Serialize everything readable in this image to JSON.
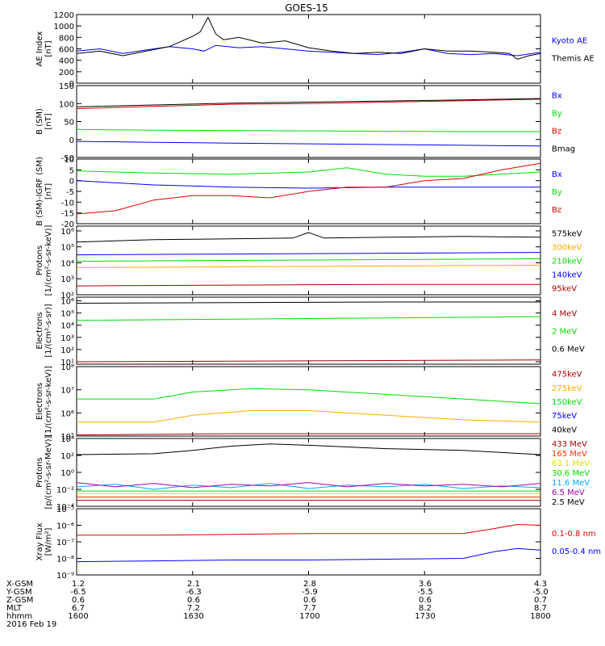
{
  "title": "GOES-15",
  "date_label": "2016 Feb 19",
  "orbit_rows": [
    {
      "label": "X-GSM",
      "values": [
        "1.2",
        "2.1",
        "2.8",
        "3.6",
        "4.3"
      ]
    },
    {
      "label": "Y-GSM",
      "values": [
        "-6.5",
        "-6.3",
        "-5.9",
        "-5.5",
        "-5.0"
      ]
    },
    {
      "label": "Z-GSM",
      "values": [
        "0.6",
        "0.6",
        "0.6",
        "0.6",
        "0.7"
      ]
    },
    {
      "label": "MLT",
      "values": [
        "6.7",
        "7.2",
        "7.7",
        "8.2",
        "8.7"
      ]
    },
    {
      "label": "hhmm",
      "values": [
        "1600",
        "1630",
        "1700",
        "1730",
        "1800"
      ]
    }
  ],
  "chart_data": [
    {
      "type": "line",
      "id": "ae",
      "ylabel_lines": [
        "AE Index",
        "[nT]"
      ],
      "ylim": [
        0,
        1200
      ],
      "log": false,
      "ticks": [
        {
          "v": 0,
          "t": "0"
        },
        {
          "v": 200,
          "t": "200"
        },
        {
          "v": 400,
          "t": "400"
        },
        {
          "v": 600,
          "t": "600"
        },
        {
          "v": 800,
          "t": "800"
        },
        {
          "v": 1000,
          "t": "1000"
        },
        {
          "v": 1200,
          "t": "1200"
        }
      ],
      "xlim": [
        0,
        120
      ],
      "series": [
        {
          "name": "Kyoto AE",
          "color": "#0000ff",
          "x": [
            0,
            6,
            12,
            18,
            24,
            30,
            33,
            36,
            42,
            48,
            54,
            60,
            66,
            72,
            78,
            84,
            90,
            96,
            102,
            108,
            114,
            120
          ],
          "y": [
            560,
            600,
            520,
            580,
            640,
            600,
            560,
            660,
            620,
            640,
            600,
            560,
            540,
            520,
            500,
            540,
            600,
            520,
            500,
            520,
            480,
            540
          ]
        },
        {
          "name": "Themis AE",
          "color": "#000000",
          "x": [
            0,
            6,
            12,
            18,
            24,
            26,
            28,
            30,
            32,
            34,
            36,
            38,
            42,
            48,
            54,
            60,
            66,
            72,
            78,
            84,
            90,
            96,
            102,
            108,
            112,
            114,
            117,
            120
          ],
          "y": [
            520,
            560,
            480,
            560,
            640,
            700,
            760,
            820,
            900,
            1150,
            860,
            760,
            800,
            700,
            740,
            620,
            560,
            520,
            540,
            520,
            600,
            560,
            560,
            540,
            520,
            420,
            480,
            520
          ]
        }
      ]
    },
    {
      "type": "line",
      "id": "bfield",
      "ylabel_lines": [
        "B (SM)",
        "[nT]"
      ],
      "ylim": [
        -50,
        150
      ],
      "log": false,
      "ticks": [
        {
          "v": -50,
          "t": "-50"
        },
        {
          "v": 0,
          "t": "0"
        },
        {
          "v": 50,
          "t": "50"
        },
        {
          "v": 100,
          "t": "100"
        },
        {
          "v": 150,
          "t": "150"
        }
      ],
      "xlim": [
        0,
        120
      ],
      "series": [
        {
          "name": "Bx",
          "color": "#0000ff",
          "x": [
            0,
            20,
            40,
            60,
            80,
            100,
            120
          ],
          "y": [
            -5,
            -8,
            -10,
            -12,
            -14,
            -16,
            -18
          ]
        },
        {
          "name": "By",
          "color": "#00dd00",
          "x": [
            0,
            20,
            40,
            60,
            80,
            100,
            120
          ],
          "y": [
            28,
            26,
            25,
            24,
            23,
            22,
            22
          ]
        },
        {
          "name": "Bz",
          "color": "#dd0000",
          "x": [
            0,
            20,
            40,
            60,
            80,
            100,
            120
          ],
          "y": [
            86,
            92,
            98,
            100,
            104,
            108,
            112
          ]
        },
        {
          "name": "Bmag",
          "color": "#000000",
          "x": [
            0,
            20,
            40,
            60,
            80,
            100,
            120
          ],
          "y": [
            91,
            96,
            101,
            104,
            107,
            110,
            114
          ]
        }
      ]
    },
    {
      "type": "line",
      "id": "bdiff",
      "ylabel_lines": [
        "B (SM)-IGRF (SM)",
        "[nT]"
      ],
      "ylim": [
        -20,
        10
      ],
      "log": false,
      "ticks": [
        {
          "v": -20,
          "t": "-20"
        },
        {
          "v": -15,
          "t": "-15"
        },
        {
          "v": -10,
          "t": "-10"
        },
        {
          "v": -5,
          "t": "-5"
        },
        {
          "v": 0,
          "t": "0"
        },
        {
          "v": 5,
          "t": "5"
        },
        {
          "v": 10,
          "t": "10"
        }
      ],
      "xlim": [
        0,
        120
      ],
      "series": [
        {
          "name": "Bx",
          "color": "#0000ff",
          "x": [
            0,
            20,
            40,
            60,
            80,
            100,
            120
          ],
          "y": [
            0,
            -2,
            -3,
            -3.5,
            -3,
            -3,
            -3
          ]
        },
        {
          "name": "By",
          "color": "#00dd00",
          "x": [
            0,
            20,
            40,
            60,
            70,
            80,
            90,
            100,
            120
          ],
          "y": [
            4.5,
            3.5,
            3,
            4,
            6,
            3,
            2,
            2,
            4
          ]
        },
        {
          "name": "Bz",
          "color": "#dd0000",
          "x": [
            0,
            10,
            20,
            30,
            40,
            50,
            60,
            70,
            80,
            90,
            100,
            110,
            120
          ],
          "y": [
            -15.5,
            -14,
            -9,
            -7,
            -7,
            -8,
            -5,
            -3,
            -3,
            0,
            1,
            5,
            8
          ]
        }
      ]
    },
    {
      "type": "line",
      "id": "protons_low",
      "ylabel_lines": [
        "Protons",
        "[1/(cm²-s-sr-keV)]"
      ],
      "ylim": [
        2,
        6.3
      ],
      "log": true,
      "ticks": [
        {
          "v": 2,
          "t": "10²"
        },
        {
          "v": 3,
          "t": "10³"
        },
        {
          "v": 4,
          "t": "10⁴"
        },
        {
          "v": 5,
          "t": "10⁵"
        },
        {
          "v": 6,
          "t": "10⁶"
        }
      ],
      "xlim": [
        0,
        120
      ],
      "series": [
        {
          "name": "575keV",
          "color": "#000000",
          "x": [
            0,
            20,
            40,
            56,
            60,
            64,
            80,
            100,
            120
          ],
          "y": [
            5.3,
            5.45,
            5.5,
            5.55,
            5.9,
            5.55,
            5.6,
            5.65,
            5.6
          ]
        },
        {
          "name": "300keV",
          "color": "#ffaa00",
          "x": [
            0,
            40,
            80,
            120
          ],
          "y": [
            3.7,
            3.75,
            3.8,
            3.85
          ]
        },
        {
          "name": "210keV",
          "color": "#00dd00",
          "x": [
            0,
            40,
            80,
            120
          ],
          "y": [
            4.1,
            4.15,
            4.2,
            4.25
          ]
        },
        {
          "name": "140keV",
          "color": "#0000ff",
          "x": [
            0,
            40,
            80,
            120
          ],
          "y": [
            4.5,
            4.55,
            4.6,
            4.65
          ]
        },
        {
          "name": "95keV",
          "color": "#aa0000",
          "x": [
            0,
            40,
            80,
            120
          ],
          "y": [
            2.55,
            2.6,
            2.65,
            2.65
          ]
        }
      ]
    },
    {
      "type": "line",
      "id": "electrons_high",
      "ylabel_lines": [
        "Electrons",
        "[1/(cm²-s-sr)]"
      ],
      "ylim": [
        0.8,
        6.3
      ],
      "log": true,
      "ticks": [
        {
          "v": 1,
          "t": "10¹"
        },
        {
          "v": 2,
          "t": "10²"
        },
        {
          "v": 3,
          "t": "10³"
        },
        {
          "v": 4,
          "t": "10⁴"
        },
        {
          "v": 5,
          "t": "10⁵"
        },
        {
          "v": 6,
          "t": "10⁶"
        }
      ],
      "xlim": [
        0,
        120
      ],
      "series": [
        {
          "name": "4 MeV",
          "color": "#aa0000",
          "x": [
            0,
            40,
            80,
            120
          ],
          "y": [
            1.0,
            1.05,
            1.1,
            1.15
          ]
        },
        {
          "name": "2 MeV",
          "color": "#00dd00",
          "x": [
            0,
            40,
            80,
            120
          ],
          "y": [
            4.4,
            4.5,
            4.6,
            4.7
          ]
        },
        {
          "name": "0.6 MeV",
          "color": "#000000",
          "x": [
            0,
            40,
            80,
            120
          ],
          "y": [
            5.8,
            5.85,
            5.9,
            5.9
          ]
        }
      ]
    },
    {
      "type": "line",
      "id": "electrons_low",
      "ylabel_lines": [
        "Electrons",
        "[1/(cm²-s-sr-keV)]"
      ],
      "ylim": [
        5,
        8
      ],
      "log": true,
      "ticks": [
        {
          "v": 5,
          "t": "10⁵"
        },
        {
          "v": 6,
          "t": "10⁶"
        },
        {
          "v": 7,
          "t": "10⁷"
        },
        {
          "v": 8,
          "t": "10⁸"
        }
      ],
      "xlim": [
        0,
        120
      ],
      "series": [
        {
          "name": "475keV",
          "color": "#aa0000",
          "x": [
            0,
            40,
            80,
            120
          ],
          "y": [
            5.05,
            5.1,
            5.1,
            5.1
          ]
        },
        {
          "name": "275keV",
          "color": "#ffaa00",
          "x": [
            0,
            20,
            30,
            45,
            60,
            80,
            100,
            120
          ],
          "y": [
            5.6,
            5.6,
            5.9,
            6.1,
            6.1,
            5.9,
            5.7,
            5.6
          ]
        },
        {
          "name": "150keV",
          "color": "#00dd00",
          "x": [
            0,
            20,
            30,
            45,
            60,
            80,
            100,
            120
          ],
          "y": [
            6.6,
            6.6,
            6.9,
            7.05,
            7.0,
            6.8,
            6.6,
            6.4
          ]
        },
        {
          "name": "75keV",
          "color": "#0000ff",
          "x": [
            0,
            120
          ],
          "y": [
            5.0,
            5.0
          ]
        },
        {
          "name": "40keV",
          "color": "#000000",
          "x": [
            0,
            120
          ],
          "y": [
            5.0,
            5.0
          ]
        }
      ]
    },
    {
      "type": "line",
      "id": "protons_high",
      "ylabel_lines": [
        "Protons",
        "[p/(cm²-s-sr-MeV)]"
      ],
      "ylim": [
        -4,
        4
      ],
      "log": true,
      "ticks": [
        {
          "v": -4,
          "t": "10⁻⁴"
        },
        {
          "v": -2,
          "t": "10⁻²"
        },
        {
          "v": 0,
          "t": "10⁰"
        },
        {
          "v": 2,
          "t": "10²"
        },
        {
          "v": 4,
          "t": "10⁴"
        }
      ],
      "xlim": [
        0,
        120
      ],
      "series": [
        {
          "name": "433 MeV",
          "color": "#aa0000",
          "x": [
            0,
            60,
            120
          ],
          "y": [
            -3.3,
            -3.3,
            -3.3
          ]
        },
        {
          "name": "165 MeV",
          "color": "#ff3300",
          "x": [
            0,
            60,
            120
          ],
          "y": [
            -2.9,
            -2.9,
            -2.9
          ]
        },
        {
          "name": "63.1 MeV",
          "color": "#dddd00",
          "x": [
            0,
            60,
            120
          ],
          "y": [
            -2.5,
            -2.5,
            -2.5
          ]
        },
        {
          "name": "30.6 MeV",
          "color": "#00dd00",
          "x": [
            0,
            60,
            120
          ],
          "y": [
            -2.2,
            -2.2,
            -2.2
          ]
        },
        {
          "name": "11.6 MeV",
          "color": "#00aaff",
          "x": [
            0,
            10,
            20,
            30,
            40,
            50,
            60,
            70,
            80,
            90,
            100,
            110,
            120
          ],
          "y": [
            -1.7,
            -1.4,
            -2.0,
            -1.5,
            -1.8,
            -1.3,
            -1.9,
            -1.5,
            -1.7,
            -1.4,
            -1.9,
            -1.6,
            -1.8
          ]
        },
        {
          "name": "6.5 MeV",
          "color": "#aa00aa",
          "x": [
            0,
            10,
            20,
            30,
            40,
            50,
            60,
            70,
            80,
            90,
            100,
            110,
            120
          ],
          "y": [
            -1.2,
            -1.7,
            -1.3,
            -1.8,
            -1.4,
            -1.6,
            -1.2,
            -1.7,
            -1.3,
            -1.6,
            -1.4,
            -1.7,
            -1.3
          ]
        },
        {
          "name": "2.5 MeV",
          "color": "#000000",
          "x": [
            0,
            20,
            30,
            40,
            50,
            60,
            70,
            80,
            100,
            120
          ],
          "y": [
            2.1,
            2.2,
            2.6,
            3.1,
            3.35,
            3.2,
            3.0,
            2.8,
            2.6,
            2.1
          ]
        }
      ]
    },
    {
      "type": "line",
      "id": "xray",
      "ylabel_lines": [
        "Xray Flux",
        "[W/m²]"
      ],
      "ylim": [
        -9,
        -5
      ],
      "log": true,
      "ticks": [
        {
          "v": -9,
          "t": "10⁻⁹"
        },
        {
          "v": -8,
          "t": "10⁻⁸"
        },
        {
          "v": -7,
          "t": "10⁻⁷"
        },
        {
          "v": -6,
          "t": "10⁻⁶"
        },
        {
          "v": -5,
          "t": "10⁻⁵"
        }
      ],
      "xlim": [
        0,
        120
      ],
      "series": [
        {
          "name": "0.1-0.8 nm",
          "color": "#dd0000",
          "x": [
            0,
            20,
            40,
            60,
            80,
            100,
            108,
            114,
            120
          ],
          "y": [
            -6.6,
            -6.6,
            -6.55,
            -6.5,
            -6.5,
            -6.5,
            -6.2,
            -5.95,
            -6.0
          ]
        },
        {
          "name": "0.05-0.4 nm",
          "color": "#0000ff",
          "x": [
            0,
            20,
            40,
            60,
            80,
            100,
            108,
            114,
            120
          ],
          "y": [
            -8.2,
            -8.15,
            -8.1,
            -8.1,
            -8.05,
            -8.0,
            -7.6,
            -7.4,
            -7.5
          ]
        }
      ]
    }
  ]
}
